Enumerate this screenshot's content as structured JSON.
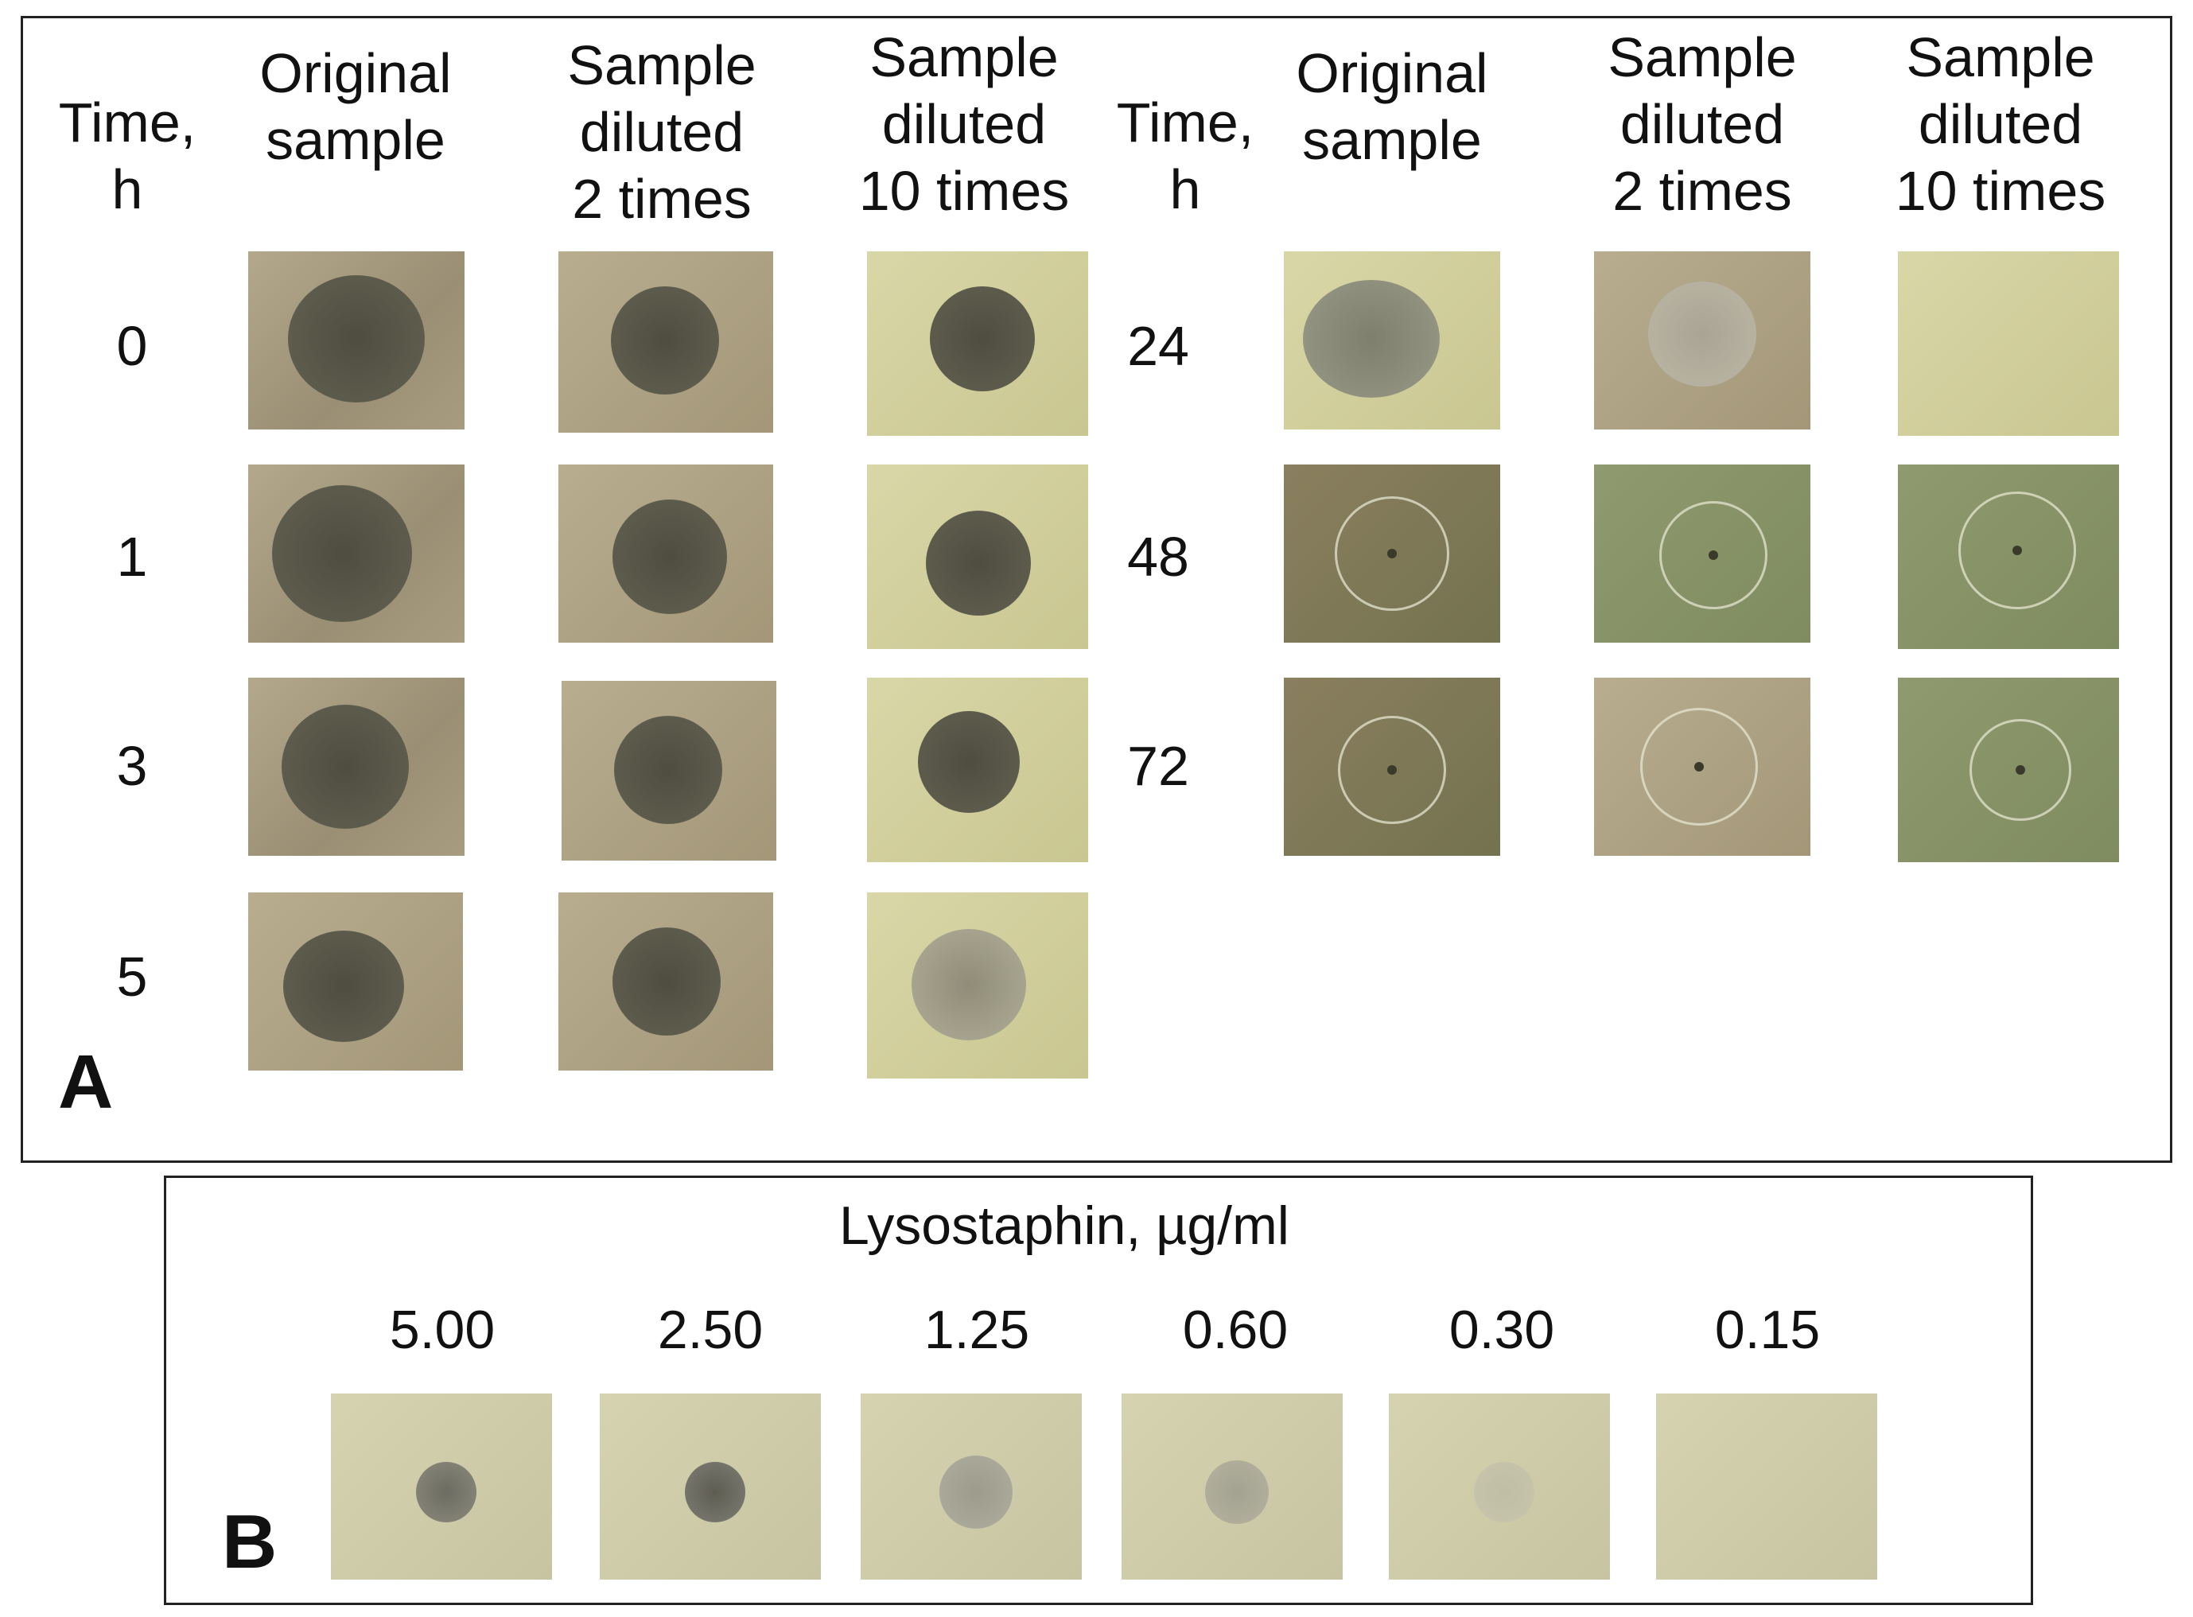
{
  "figure": {
    "panel_a": {
      "letter": "A",
      "left_block": {
        "time_header": [
          "Time,",
          "h"
        ],
        "columns": [
          [
            "Original",
            "sample"
          ],
          [
            "Sample",
            "diluted",
            "2 times"
          ],
          [
            "Sample",
            "diluted",
            "10 times"
          ]
        ],
        "rows": [
          "0",
          "1",
          "3",
          "5"
        ]
      },
      "right_block": {
        "time_header": [
          "Time,",
          "h"
        ],
        "columns": [
          [
            "Original",
            "sample"
          ],
          [
            "Sample",
            "diluted",
            "2 times"
          ],
          [
            "Sample",
            "diluted",
            "10 times"
          ]
        ],
        "rows": [
          "24",
          "48",
          "72"
        ]
      }
    },
    "panel_b": {
      "letter": "B",
      "title": "Lysostaphin, µg/ml",
      "concentrations": [
        "5.00",
        "2.50",
        "1.25",
        "0.60",
        "0.30",
        "0.15"
      ]
    }
  }
}
